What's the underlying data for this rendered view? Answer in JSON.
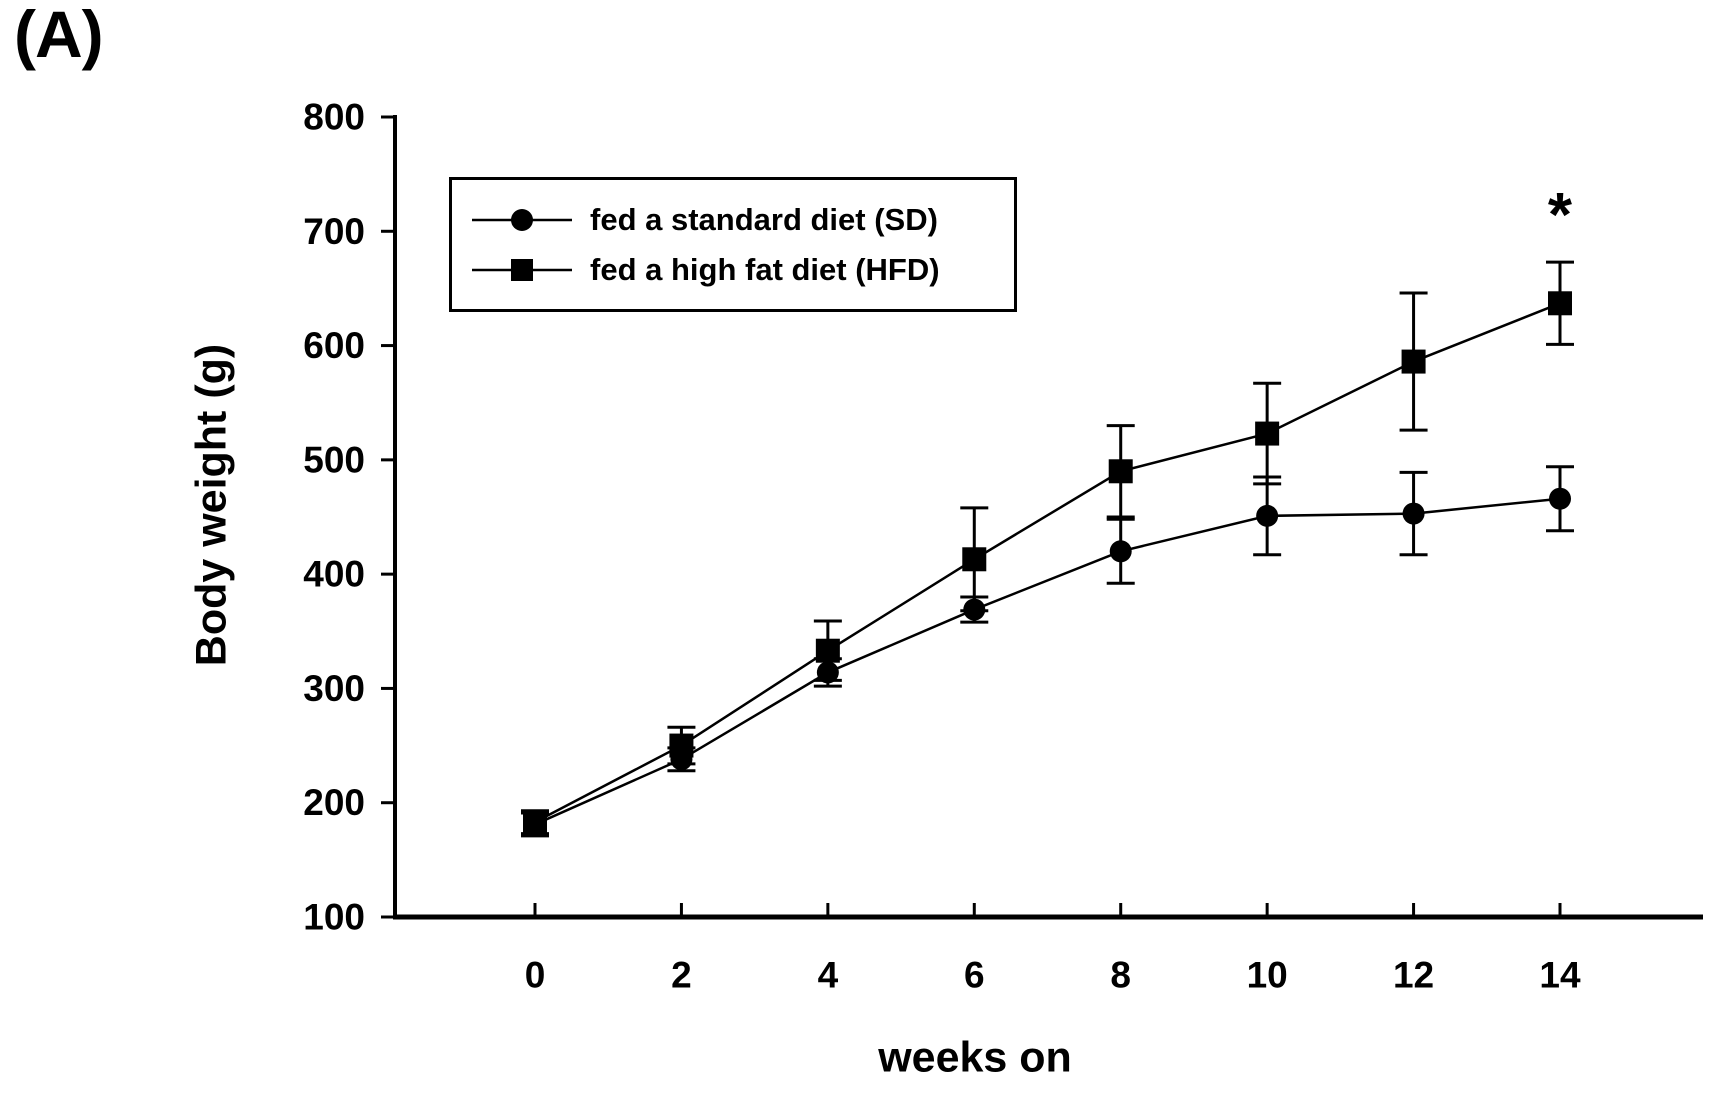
{
  "panel_label": "(A)",
  "colors": {
    "foreground": "#000000",
    "background": "#ffffff"
  },
  "chart_data": {
    "type": "line",
    "title": "",
    "xlabel": "weeks on",
    "ylabel": "Body weight (g)",
    "xlim": [
      0,
      14
    ],
    "ylim": [
      100,
      800
    ],
    "xticks": [
      0,
      2,
      4,
      6,
      8,
      10,
      12,
      14
    ],
    "yticks": [
      100,
      200,
      300,
      400,
      500,
      600,
      700,
      800
    ],
    "grid": false,
    "legend": {
      "position": "top-left-inside",
      "border": true
    },
    "x": [
      0,
      2,
      4,
      6,
      8,
      10,
      12,
      14
    ],
    "series": [
      {
        "name": "fed a standard diet (SD)",
        "key": "sd",
        "marker": "circle",
        "color": "#000000",
        "values": [
          181,
          238,
          314,
          369,
          420,
          451,
          453,
          466
        ],
        "errors": [
          10,
          10,
          12,
          11,
          28,
          34,
          36,
          28
        ]
      },
      {
        "name": "fed a high fat diet (HFD)",
        "key": "hfd",
        "marker": "square",
        "color": "#000000",
        "values": [
          183,
          250,
          333,
          413,
          490,
          523,
          586,
          637
        ],
        "errors": [
          10,
          16,
          26,
          45,
          40,
          44,
          60,
          36
        ]
      }
    ],
    "annotations": [
      {
        "text": "*",
        "x": 14,
        "y": 714
      }
    ]
  }
}
